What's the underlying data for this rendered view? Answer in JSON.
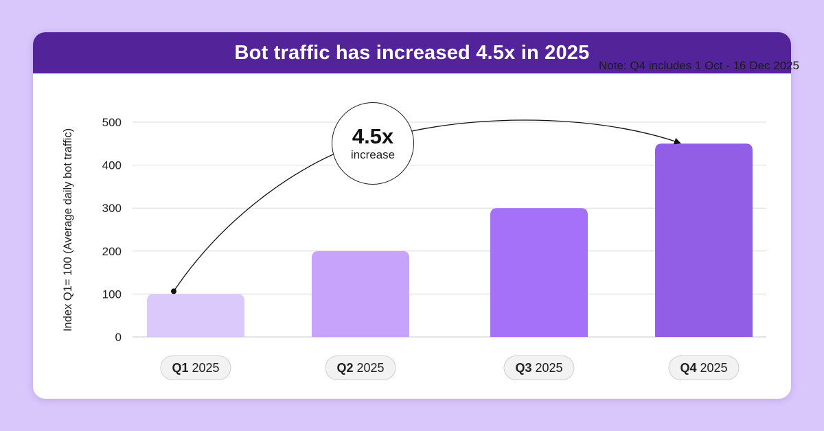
{
  "colors": {
    "page_background": "#d9c6fb",
    "header_background": "#53239a",
    "bar_colors": [
      "#dbc9fc",
      "#c8a3fc",
      "#a571f8",
      "#925ee6"
    ],
    "gridline": "#d9d9d9"
  },
  "header": {
    "title": "Bot traffic has increased 4.5x in 2025"
  },
  "note": "Note: Q4 includes 1 Oct - 16 Dec 2025",
  "callout": {
    "value": "4.5x",
    "label": "increase"
  },
  "categories": [
    {
      "quarter": "Q1",
      "year": "2025"
    },
    {
      "quarter": "Q2",
      "year": "2025"
    },
    {
      "quarter": "Q3",
      "year": "2025"
    },
    {
      "quarter": "Q4",
      "year": "2025"
    }
  ],
  "chart_data": {
    "type": "bar",
    "title": "Bot traffic has increased 4.5x in 2025",
    "categories": [
      "Q1 2025",
      "Q2 2025",
      "Q3 2025",
      "Q4 2025"
    ],
    "values": [
      100,
      200,
      300,
      450
    ],
    "xlabel": "",
    "ylabel": "Index Q1= 100 (Average daily bot traffic)",
    "ylim": [
      0,
      500
    ],
    "yticks": [
      0,
      100,
      200,
      300,
      400,
      500
    ],
    "grid": true,
    "legend": "none",
    "annotation": "4.5x increase from Q1 2025 to Q4 2025"
  }
}
